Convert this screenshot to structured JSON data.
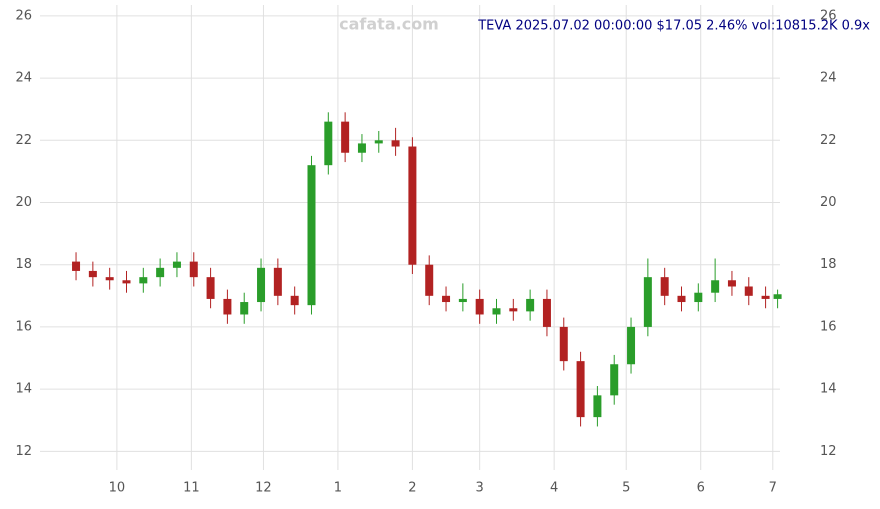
{
  "chart_data": {
    "type": "candlestick",
    "title": "TEVA 2025.07.02 00:00:00 $17.05 2.46% vol:10815.2K 0.9x",
    "watermark": "cafata.com",
    "x": [
      -17,
      -10,
      -3,
      4,
      11,
      18,
      25,
      32,
      39,
      46,
      53,
      60,
      67,
      74,
      81,
      88,
      95,
      102,
      109,
      116,
      123,
      130,
      137,
      144,
      151,
      158,
      165,
      172,
      179,
      186,
      193,
      200,
      207,
      214,
      221,
      228,
      235,
      242,
      249,
      256,
      263,
      270,
      275
    ],
    "open": [
      18.1,
      17.8,
      17.6,
      17.5,
      17.4,
      17.6,
      17.9,
      18.1,
      17.6,
      16.9,
      16.4,
      16.8,
      17.9,
      17.0,
      16.7,
      21.2,
      22.6,
      21.6,
      21.9,
      22.0,
      21.8,
      18.0,
      17.0,
      16.8,
      16.9,
      16.4,
      16.6,
      16.5,
      16.9,
      16.0,
      14.9,
      13.1,
      13.8,
      14.8,
      16.0,
      17.6,
      17.0,
      16.8,
      17.1,
      17.5,
      17.3,
      17.0,
      16.9
    ],
    "high": [
      18.4,
      18.1,
      17.9,
      17.8,
      17.9,
      18.2,
      18.4,
      18.4,
      17.9,
      17.2,
      17.1,
      18.2,
      18.2,
      17.3,
      21.5,
      22.9,
      22.9,
      22.2,
      22.3,
      22.4,
      22.1,
      18.3,
      17.3,
      17.4,
      17.2,
      16.9,
      16.9,
      17.2,
      17.2,
      16.3,
      15.2,
      14.1,
      15.1,
      16.3,
      18.2,
      17.9,
      17.3,
      17.4,
      18.2,
      17.8,
      17.6,
      17.3,
      17.2
    ],
    "low": [
      17.5,
      17.3,
      17.2,
      17.1,
      17.1,
      17.3,
      17.6,
      17.3,
      16.6,
      16.1,
      16.1,
      16.5,
      16.7,
      16.4,
      16.4,
      20.9,
      21.3,
      21.3,
      21.6,
      21.5,
      17.7,
      16.7,
      16.5,
      16.5,
      16.1,
      16.1,
      16.2,
      16.2,
      15.7,
      14.6,
      12.8,
      12.8,
      13.5,
      14.5,
      15.7,
      16.7,
      16.5,
      16.5,
      16.8,
      17.0,
      16.7,
      16.6,
      16.6
    ],
    "close": [
      17.8,
      17.6,
      17.5,
      17.4,
      17.6,
      17.9,
      18.1,
      17.6,
      16.9,
      16.4,
      16.8,
      17.9,
      17.0,
      16.7,
      21.2,
      22.6,
      21.6,
      21.9,
      22.0,
      21.8,
      18.0,
      17.0,
      16.8,
      16.9,
      16.4,
      16.6,
      16.5,
      16.9,
      16.0,
      14.9,
      13.1,
      13.8,
      14.8,
      16.0,
      17.6,
      17.0,
      16.8,
      17.1,
      17.5,
      17.3,
      17.0,
      16.9,
      17.05
    ],
    "up_color": "#2a9d2a",
    "down_color": "#b22222",
    "xlim": [
      -32,
      276
    ],
    "xticks": [
      {
        "value": 0,
        "label": "10"
      },
      {
        "value": 31,
        "label": "11"
      },
      {
        "value": 61,
        "label": "12"
      },
      {
        "value": 92,
        "label": "1"
      },
      {
        "value": 123,
        "label": "2"
      },
      {
        "value": 151,
        "label": "3"
      },
      {
        "value": 182,
        "label": "4"
      },
      {
        "value": 212,
        "label": "5"
      },
      {
        "value": 243,
        "label": "6"
      },
      {
        "value": 273,
        "label": "7"
      }
    ],
    "ylim": [
      11.4,
      26.35
    ],
    "yticks": [
      12,
      14,
      16,
      18,
      20,
      22,
      24,
      26
    ],
    "grid": true
  }
}
